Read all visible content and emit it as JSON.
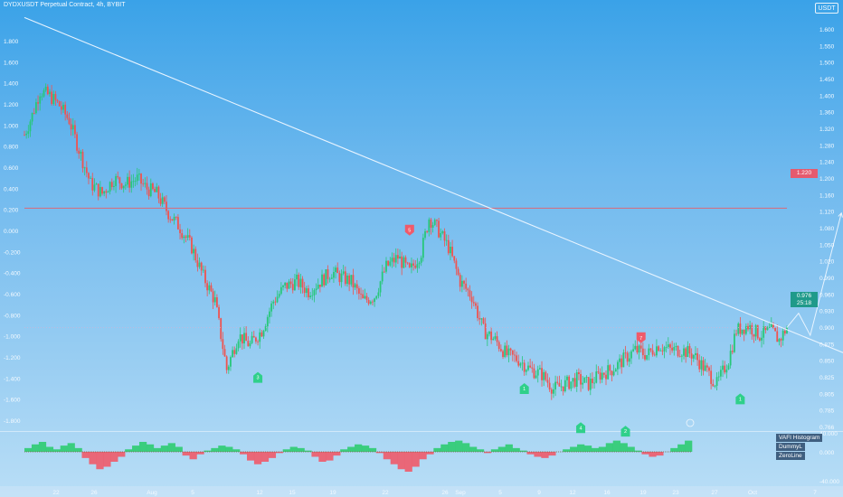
{
  "header": {
    "title": "DYDXUSDT Perpetual Contract, 4h, BYBIT",
    "currency": "USDT"
  },
  "colors": {
    "up": "#27c77a",
    "down": "#ef5350",
    "trendline": "#e8f4ff",
    "resistance_line": "#d96a78",
    "current_price_line": "#c7b5d9",
    "hist_positive": "#2ecc71",
    "hist_negative": "#ef5a6a"
  },
  "price_axis": {
    "ticks": [
      "1.600",
      "1.550",
      "1.500",
      "1.450",
      "1.400",
      "1.360",
      "1.320",
      "1.280",
      "1.240",
      "1.200",
      "1.160",
      "1.120",
      "1.080",
      "1.050",
      "1.020",
      "0.990",
      "0.960",
      "0.930",
      "0.900",
      "0.875",
      "0.850",
      "0.825",
      "0.805",
      "0.785",
      "0.766"
    ],
    "current_price": "0.976",
    "countdown": "25:18",
    "hline_label": "1.220"
  },
  "left_axis": {
    "ticks": [
      "1.800",
      "1.600",
      "1.400",
      "1.200",
      "1.000",
      "0.800",
      "0.600",
      "0.400",
      "0.200",
      "0.000",
      "-0.200",
      "-0.400",
      "-0.600",
      "-0.800",
      "-1.000",
      "-1.200",
      "-1.400",
      "-1.600",
      "-1.800"
    ]
  },
  "time_axis": {
    "labels": [
      "22",
      "26",
      "Aug",
      "5",
      "12",
      "15",
      "19",
      "22",
      "26",
      "Sep",
      "5",
      "9",
      "12",
      "16",
      "19",
      "23",
      "27",
      "Oct",
      "7"
    ]
  },
  "indicator": {
    "scale": [
      "40.000",
      "0.000",
      "-40.000"
    ],
    "legend": [
      "VAFI Histogram",
      "DummyL",
      "ZeroLine"
    ]
  },
  "markers": [
    {
      "kind": "sell",
      "text": "5"
    },
    {
      "kind": "sell",
      "text": "7"
    },
    {
      "kind": "buy",
      "text": "3"
    },
    {
      "kind": "buy",
      "text": "1"
    },
    {
      "kind": "buy",
      "text": "4"
    },
    {
      "kind": "buy",
      "text": "2"
    },
    {
      "kind": "buy",
      "text": "1"
    }
  ],
  "chart_data": {
    "type": "candlestick",
    "series_name": "DYDXUSDT Perpetual Contract",
    "timeframe": "4h",
    "ylim": [
      0.766,
      1.62
    ],
    "close_path": [
      [
        0,
        1.37
      ],
      [
        4,
        1.41
      ],
      [
        8,
        1.46
      ],
      [
        13,
        1.45
      ],
      [
        18,
        1.43
      ],
      [
        23,
        1.4
      ],
      [
        28,
        1.34
      ],
      [
        34,
        1.27
      ],
      [
        40,
        1.25
      ],
      [
        46,
        1.28
      ],
      [
        52,
        1.27
      ],
      [
        58,
        1.28
      ],
      [
        63,
        1.26
      ],
      [
        68,
        1.25
      ],
      [
        74,
        1.21
      ],
      [
        80,
        1.18
      ],
      [
        86,
        1.14
      ],
      [
        92,
        1.08
      ],
      [
        98,
        1.03
      ],
      [
        104,
        0.89
      ],
      [
        110,
        0.96
      ],
      [
        116,
        0.94
      ],
      [
        122,
        0.97
      ],
      [
        128,
        1.03
      ],
      [
        134,
        1.06
      ],
      [
        140,
        1.07
      ],
      [
        146,
        1.05
      ],
      [
        152,
        1.07
      ],
      [
        158,
        1.09
      ],
      [
        162,
        1.08
      ],
      [
        168,
        1.07
      ],
      [
        174,
        1.03
      ],
      [
        180,
        1.04
      ],
      [
        186,
        1.1
      ],
      [
        192,
        1.12
      ],
      [
        198,
        1.09
      ],
      [
        204,
        1.13
      ],
      [
        208,
        1.2
      ],
      [
        212,
        1.18
      ],
      [
        218,
        1.14
      ],
      [
        224,
        1.07
      ],
      [
        230,
        1.04
      ],
      [
        236,
        0.97
      ],
      [
        242,
        0.95
      ],
      [
        248,
        0.92
      ],
      [
        254,
        0.91
      ],
      [
        260,
        0.89
      ],
      [
        266,
        0.88
      ],
      [
        272,
        0.85
      ],
      [
        278,
        0.86
      ],
      [
        284,
        0.87
      ],
      [
        290,
        0.86
      ],
      [
        296,
        0.88
      ],
      [
        302,
        0.89
      ],
      [
        308,
        0.91
      ],
      [
        314,
        0.93
      ],
      [
        320,
        0.92
      ],
      [
        326,
        0.94
      ],
      [
        332,
        0.93
      ],
      [
        338,
        0.93
      ],
      [
        344,
        0.92
      ],
      [
        350,
        0.89
      ],
      [
        356,
        0.86
      ],
      [
        362,
        0.91
      ],
      [
        366,
        0.97
      ],
      [
        372,
        0.98
      ],
      [
        378,
        0.96
      ],
      [
        384,
        0.97
      ],
      [
        388,
        0.95
      ],
      [
        392,
        0.976
      ]
    ],
    "trendline": [
      [
        0,
        1.61
      ],
      [
        442,
        0.89
      ]
    ],
    "resistance": 1.22,
    "projection": [
      [
        392,
        0.976
      ],
      [
        398,
        1.005
      ],
      [
        404,
        0.96
      ],
      [
        420,
        1.21
      ]
    ],
    "indicator_values": [
      3,
      6,
      8,
      4,
      2,
      5,
      7,
      3,
      -5,
      -10,
      -14,
      -12,
      -8,
      -4,
      2,
      5,
      8,
      6,
      3,
      5,
      7,
      4,
      -3,
      -6,
      -2,
      1,
      3,
      5,
      4,
      2,
      -2,
      -7,
      -10,
      -8,
      -5,
      -1,
      2,
      4,
      3,
      1,
      -4,
      -8,
      -7,
      -3,
      2,
      4,
      6,
      5,
      3,
      -1,
      -6,
      -10,
      -14,
      -16,
      -12,
      -6,
      -2,
      3,
      6,
      8,
      9,
      7,
      4,
      2,
      -1,
      2,
      4,
      6,
      3,
      1,
      -2,
      -4,
      -5,
      -3,
      0,
      2,
      4,
      6,
      5,
      3,
      4,
      7,
      9,
      7,
      4,
      1,
      -2,
      -4,
      -3,
      0,
      3,
      6,
      9
    ]
  }
}
